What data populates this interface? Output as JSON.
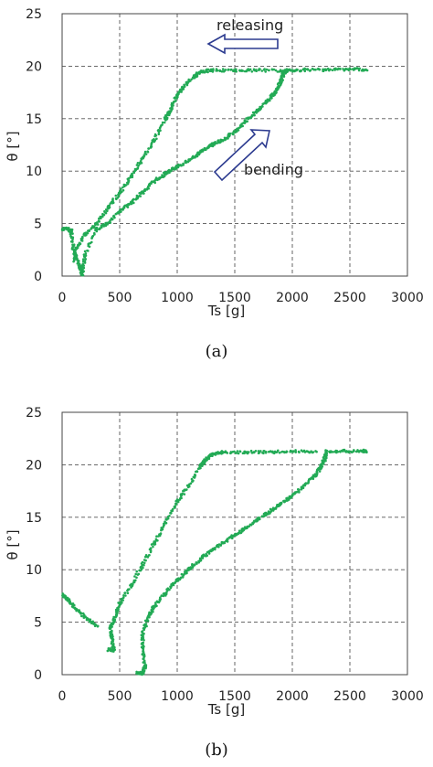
{
  "chart_data": [
    {
      "type": "scatter",
      "panel_label": "(a)",
      "xlabel": "Ts [g]",
      "ylabel": "θ [°]",
      "xlim": [
        0,
        3000
      ],
      "ylim": [
        0,
        25
      ],
      "xticks": [
        "0",
        "500",
        "1000",
        "1500",
        "2000",
        "2500",
        "3000"
      ],
      "yticks": [
        "0",
        "5",
        "10",
        "15",
        "20",
        "25"
      ],
      "grid": true,
      "color": "#22aa55",
      "annotations": [
        {
          "text": "releasing",
          "arrow": "left"
        },
        {
          "text": "bending",
          "arrow": "up-right"
        }
      ],
      "series": [
        {
          "points": [
            [
              0,
              4.5
            ],
            [
              50,
              4.5
            ],
            [
              80,
              4.3
            ],
            [
              100,
              2.5
            ],
            [
              150,
              1.0
            ],
            [
              175,
              0.2
            ],
            [
              200,
              2.0
            ],
            [
              300,
              4.5
            ],
            [
              400,
              5.0
            ],
            [
              500,
              6.2
            ],
            [
              600,
              7.0
            ],
            [
              700,
              8.0
            ],
            [
              800,
              9.0
            ],
            [
              900,
              9.8
            ],
            [
              1000,
              10.4
            ],
            [
              1100,
              11.0
            ],
            [
              1200,
              11.8
            ],
            [
              1300,
              12.5
            ],
            [
              1400,
              13.0
            ],
            [
              1500,
              13.8
            ],
            [
              1600,
              14.8
            ],
            [
              1700,
              15.8
            ],
            [
              1800,
              16.8
            ],
            [
              1850,
              17.5
            ],
            [
              1900,
              18.5
            ],
            [
              1920,
              19.3
            ],
            [
              1950,
              19.6
            ]
          ]
        },
        {
          "points": [
            [
              1950,
              19.6
            ],
            [
              2100,
              19.65
            ],
            [
              2300,
              19.65
            ],
            [
              2500,
              19.7
            ],
            [
              2650,
              19.7
            ]
          ]
        },
        {
          "points": [
            [
              1950,
              19.6
            ],
            [
              1700,
              19.6
            ],
            [
              1500,
              19.6
            ],
            [
              1300,
              19.6
            ],
            [
              1200,
              19.5
            ],
            [
              1150,
              19.0
            ],
            [
              1050,
              18.0
            ],
            [
              1000,
              17.2
            ],
            [
              950,
              16.0
            ],
            [
              900,
              15.0
            ],
            [
              800,
              13.0
            ],
            [
              700,
              11.2
            ],
            [
              600,
              9.5
            ],
            [
              500,
              8.0
            ],
            [
              400,
              6.5
            ],
            [
              300,
              5.0
            ],
            [
              200,
              4.0
            ],
            [
              120,
              2.5
            ],
            [
              100,
              1.5
            ]
          ]
        }
      ]
    },
    {
      "type": "scatter",
      "panel_label": "(b)",
      "xlabel": "Ts [g]",
      "ylabel": "θ [°]",
      "xlim": [
        0,
        3000
      ],
      "ylim": [
        0,
        25
      ],
      "xticks": [
        "0",
        "500",
        "1000",
        "1500",
        "2000",
        "2500",
        "3000"
      ],
      "yticks": [
        "0",
        "5",
        "10",
        "15",
        "20",
        "25"
      ],
      "grid": true,
      "color": "#22aa55",
      "annotations": [],
      "series": [
        {
          "points": [
            [
              0,
              7.6
            ],
            [
              50,
              7.2
            ],
            [
              100,
              6.5
            ],
            [
              200,
              5.5
            ],
            [
              300,
              4.6
            ]
          ]
        },
        {
          "points": [
            [
              400,
              2.4
            ],
            [
              450,
              2.3
            ],
            [
              430,
              3.5
            ],
            [
              420,
              4.5
            ],
            [
              460,
              5.5
            ],
            [
              500,
              6.8
            ],
            [
              600,
              8.5
            ],
            [
              700,
              10.5
            ],
            [
              800,
              12.5
            ],
            [
              900,
              14.5
            ],
            [
              1000,
              16.5
            ],
            [
              1100,
              18.0
            ],
            [
              1200,
              19.8
            ],
            [
              1250,
              20.5
            ],
            [
              1300,
              21.0
            ],
            [
              1400,
              21.2
            ],
            [
              1600,
              21.2
            ],
            [
              1800,
              21.2
            ],
            [
              2000,
              21.3
            ],
            [
              2200,
              21.3
            ]
          ]
        },
        {
          "points": [
            [
              650,
              0.2
            ],
            [
              700,
              0.1
            ],
            [
              720,
              0.8
            ],
            [
              700,
              2.5
            ],
            [
              700,
              4.0
            ],
            [
              750,
              5.5
            ],
            [
              800,
              6.5
            ],
            [
              900,
              7.8
            ],
            [
              1000,
              9.0
            ],
            [
              1100,
              10.0
            ],
            [
              1200,
              11.0
            ],
            [
              1300,
              11.8
            ],
            [
              1400,
              12.6
            ],
            [
              1500,
              13.3
            ],
            [
              1600,
              14.0
            ],
            [
              1700,
              14.8
            ],
            [
              1800,
              15.5
            ],
            [
              1900,
              16.3
            ],
            [
              2000,
              17.0
            ],
            [
              2100,
              18.0
            ],
            [
              2200,
              19.0
            ],
            [
              2250,
              19.8
            ],
            [
              2280,
              20.5
            ],
            [
              2300,
              21.3
            ]
          ]
        },
        {
          "points": [
            [
              2300,
              21.3
            ],
            [
              2450,
              21.3
            ],
            [
              2600,
              21.3
            ],
            [
              2650,
              21.3
            ]
          ]
        }
      ]
    }
  ]
}
